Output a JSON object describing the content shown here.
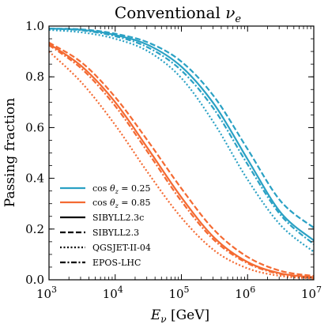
{
  "chart_data": {
    "type": "line",
    "title": "Conventional νe",
    "title_parts": {
      "main": "Conventional ",
      "symbol": "ν",
      "subscript": "e"
    },
    "xlabel": "Eν [GeV]",
    "xlabel_parts": {
      "symbol": "E",
      "subscript": "ν",
      "unit": " [GeV]"
    },
    "ylabel": "Passing fraction",
    "xscale": "log",
    "xlim": [
      1000,
      10000000
    ],
    "ylim": [
      0.0,
      1.0
    ],
    "grid": false,
    "legend_placement": "lower-left",
    "x_ticks": [
      {
        "value": 1000,
        "base": "10",
        "exp": "3"
      },
      {
        "value": 10000,
        "base": "10",
        "exp": "4"
      },
      {
        "value": 100000,
        "base": "10",
        "exp": "5"
      },
      {
        "value": 1000000,
        "base": "10",
        "exp": "6"
      },
      {
        "value": 10000000,
        "base": "10",
        "exp": "7"
      }
    ],
    "y_ticks": [
      {
        "value": 0.0,
        "label": "0.0"
      },
      {
        "value": 0.2,
        "label": "0.2"
      },
      {
        "value": 0.4,
        "label": "0.4"
      },
      {
        "value": 0.6,
        "label": "0.6"
      },
      {
        "value": 0.8,
        "label": "0.8"
      },
      {
        "value": 1.0,
        "label": "1.0"
      }
    ],
    "colors": {
      "cos_0_25": "#2aa1c4",
      "cos_0_85": "#f46a32"
    },
    "legend": {
      "colors": [
        {
          "label": "cos θz = 0.25",
          "color": "#2aa1c4",
          "label_parts": {
            "fn": "cos",
            "symbol": "θ",
            "subscript": "z",
            "rest": " = 0.25"
          }
        },
        {
          "label": "cos θz = 0.85",
          "color": "#f46a32",
          "label_parts": {
            "fn": "cos",
            "symbol": "θ",
            "subscript": "z",
            "rest": " = 0.85"
          }
        }
      ],
      "styles": [
        {
          "label": "SIBYLL2.3c",
          "dash": "solid"
        },
        {
          "label": "SIBYLL2.3",
          "dash": "dashed"
        },
        {
          "label": "QGSJET-II-04",
          "dash": "dotted"
        },
        {
          "label": "EPOS-LHC",
          "dash": "dashdot"
        }
      ]
    },
    "series": [
      {
        "cos_zenith": 0.25,
        "model": "SIBYLL2.3c",
        "color": "#2aa1c4",
        "dash": "solid",
        "x": [
          1000,
          3162,
          10000,
          31623,
          100000,
          316228,
          1000000,
          3162278,
          10000000
        ],
        "values": [
          0.99,
          0.985,
          0.965,
          0.925,
          0.84,
          0.69,
          0.475,
          0.265,
          0.155
        ]
      },
      {
        "cos_zenith": 0.25,
        "model": "SIBYLL2.3",
        "color": "#2aa1c4",
        "dash": "dashed",
        "x": [
          1000,
          3162,
          10000,
          31623,
          100000,
          316228,
          1000000,
          3162278,
          10000000
        ],
        "values": [
          0.99,
          0.987,
          0.97,
          0.935,
          0.86,
          0.72,
          0.515,
          0.31,
          0.205
        ]
      },
      {
        "cos_zenith": 0.25,
        "model": "QGSJET-II-04",
        "color": "#2aa1c4",
        "dash": "dotted",
        "x": [
          1000,
          3162,
          10000,
          31623,
          100000,
          316228,
          1000000,
          3162278,
          10000000
        ],
        "values": [
          0.985,
          0.975,
          0.95,
          0.9,
          0.795,
          0.615,
          0.395,
          0.215,
          0.11
        ]
      },
      {
        "cos_zenith": 0.25,
        "model": "EPOS-LHC",
        "color": "#2aa1c4",
        "dash": "dashdot",
        "x": [
          1000,
          3162,
          10000,
          31623,
          100000,
          316228,
          1000000,
          3162278,
          10000000
        ],
        "values": [
          0.99,
          0.983,
          0.96,
          0.915,
          0.825,
          0.67,
          0.455,
          0.255,
          0.14
        ]
      },
      {
        "cos_zenith": 0.85,
        "model": "SIBYLL2.3c",
        "color": "#f46a32",
        "dash": "solid",
        "x": [
          1000,
          3162,
          10000,
          31623,
          100000,
          316228,
          1000000,
          3162278,
          10000000
        ],
        "values": [
          0.93,
          0.84,
          0.7,
          0.515,
          0.325,
          0.165,
          0.07,
          0.025,
          0.01
        ]
      },
      {
        "cos_zenith": 0.85,
        "model": "SIBYLL2.3",
        "color": "#f46a32",
        "dash": "dashed",
        "x": [
          1000,
          3162,
          10000,
          31623,
          100000,
          316228,
          1000000,
          3162278,
          10000000
        ],
        "values": [
          0.935,
          0.855,
          0.72,
          0.545,
          0.36,
          0.195,
          0.09,
          0.035,
          0.015
        ]
      },
      {
        "cos_zenith": 0.85,
        "model": "QGSJET-II-04",
        "color": "#f46a32",
        "dash": "dotted",
        "x": [
          1000,
          3162,
          10000,
          31623,
          100000,
          316228,
          1000000,
          3162278,
          10000000
        ],
        "values": [
          0.9,
          0.775,
          0.61,
          0.42,
          0.245,
          0.115,
          0.045,
          0.015,
          0.005
        ]
      },
      {
        "cos_zenith": 0.85,
        "model": "EPOS-LHC",
        "color": "#f46a32",
        "dash": "dashdot",
        "x": [
          1000,
          3162,
          10000,
          31623,
          100000,
          316228,
          1000000,
          3162278,
          10000000
        ],
        "values": [
          0.925,
          0.83,
          0.685,
          0.5,
          0.31,
          0.155,
          0.065,
          0.022,
          0.008
        ]
      }
    ]
  }
}
